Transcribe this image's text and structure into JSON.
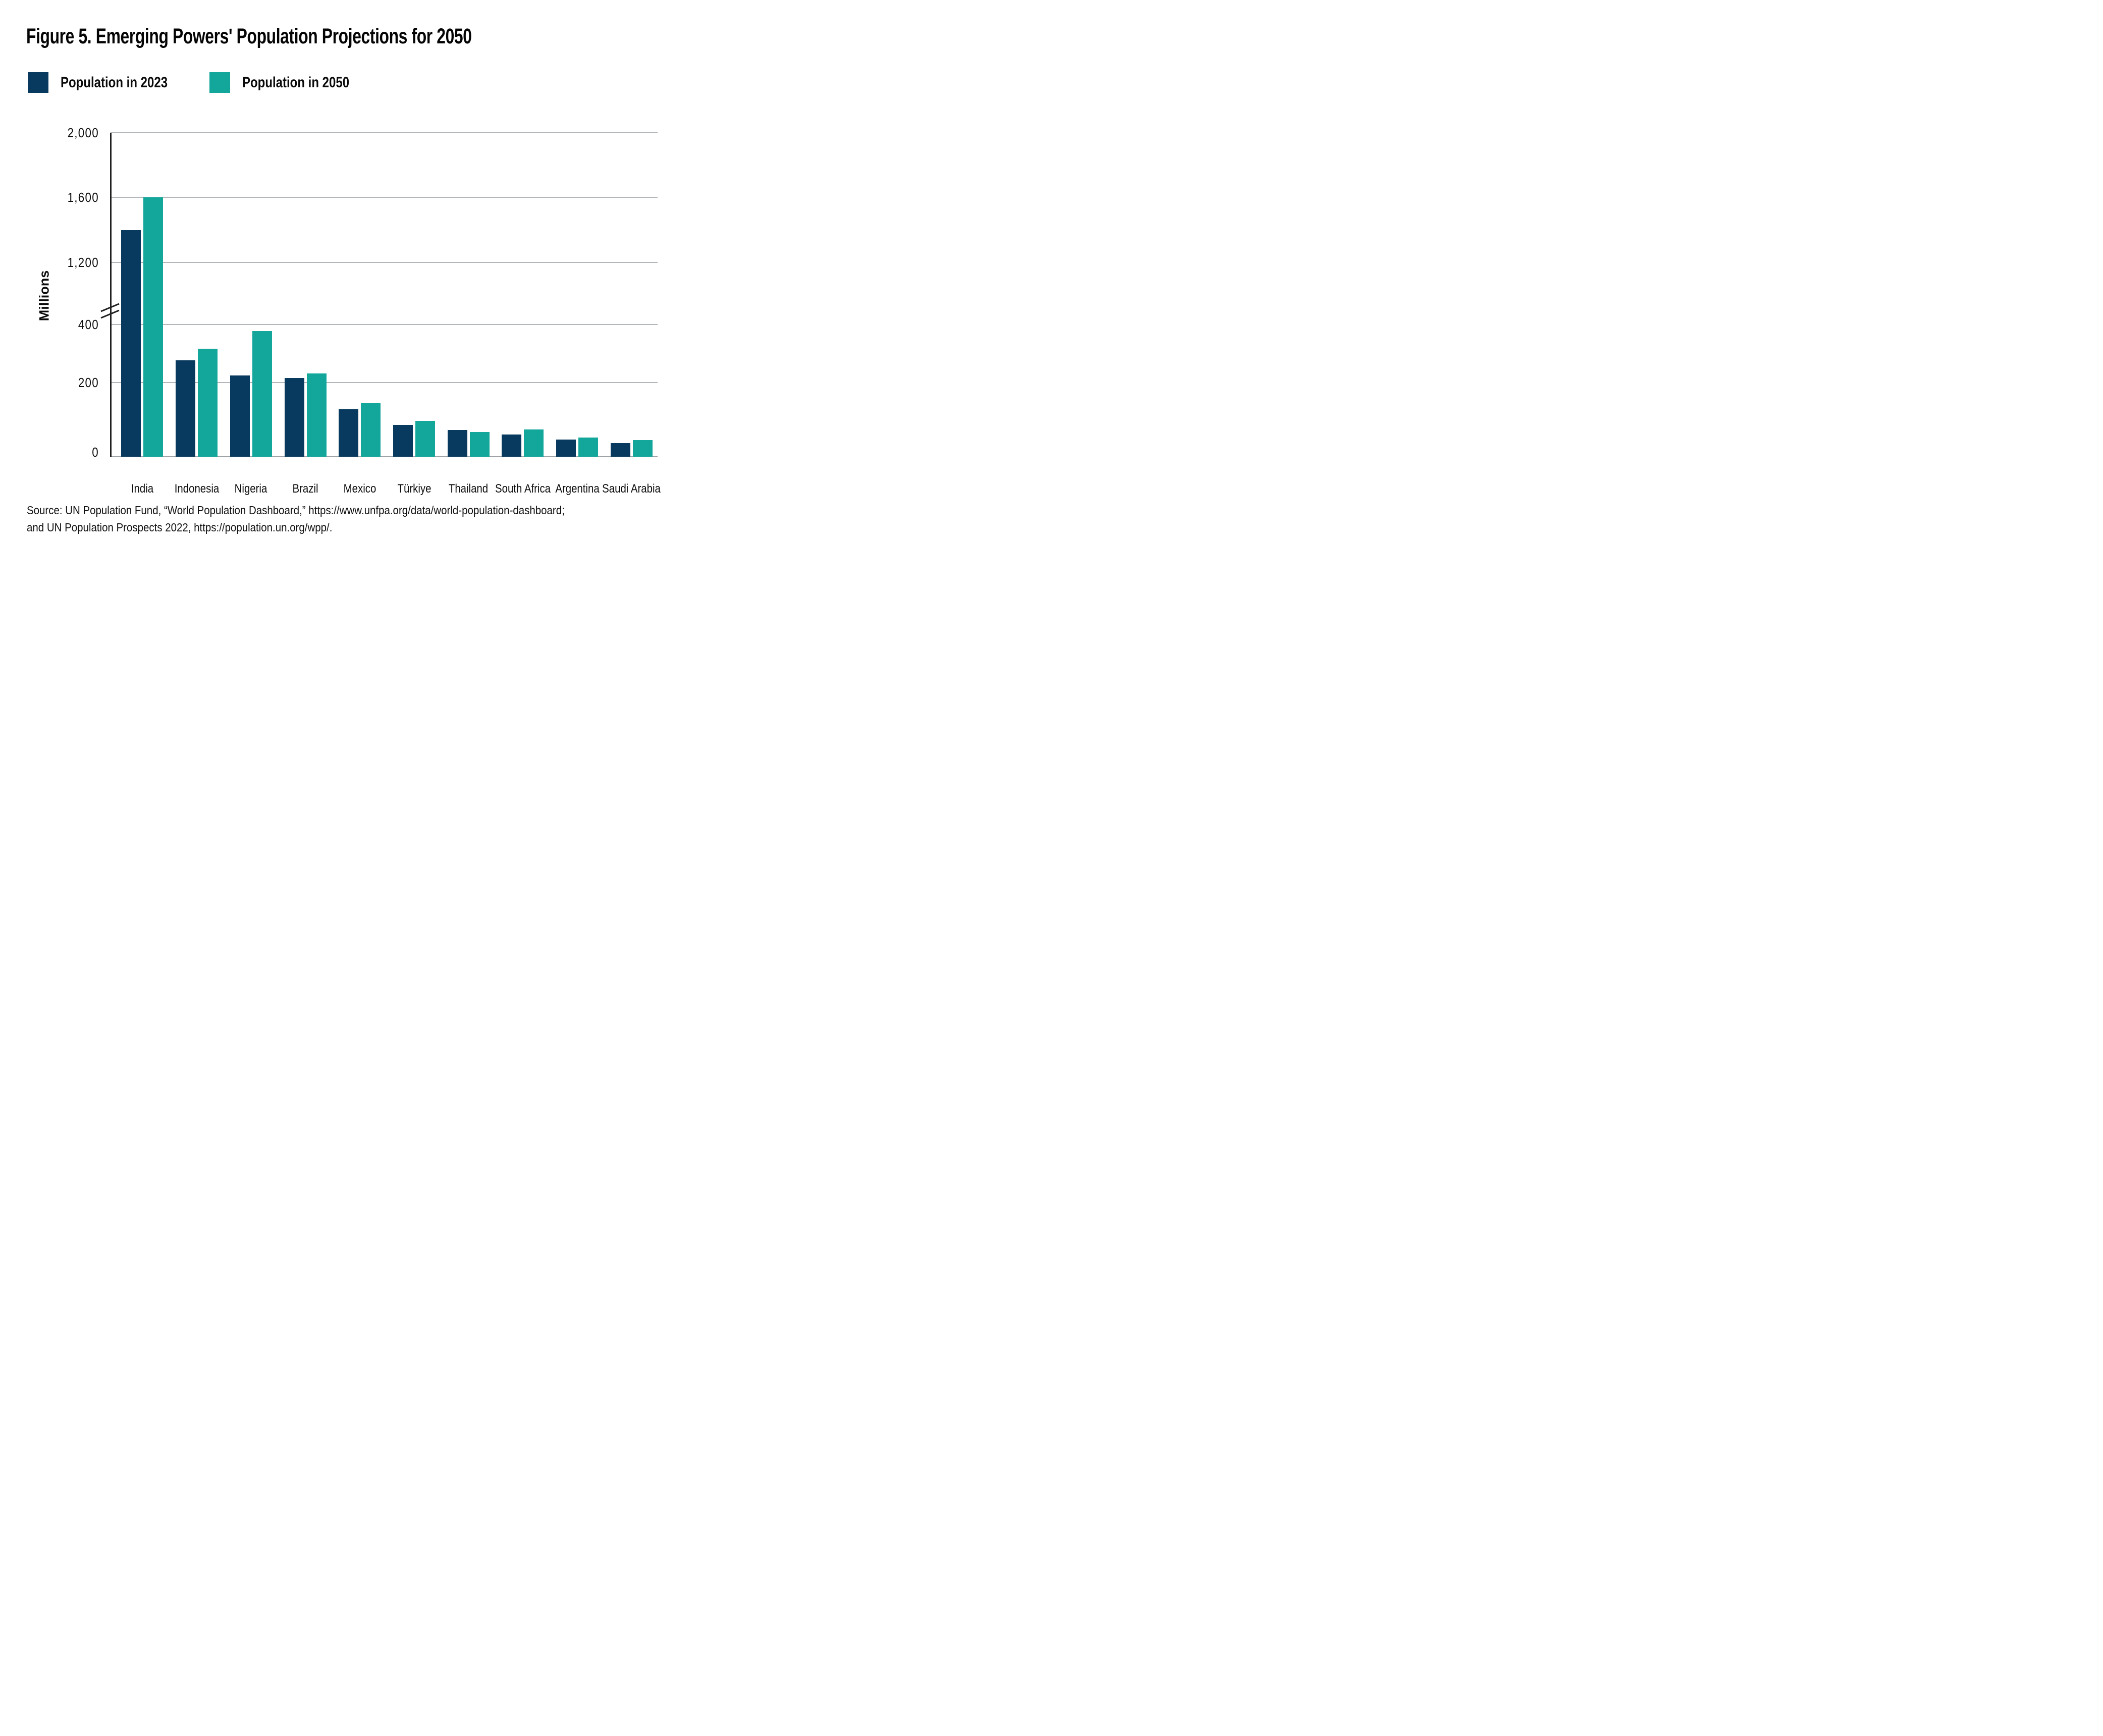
{
  "figure": {
    "title": "Figure 5. Emerging Powers' Population Projections for 2050",
    "source_line1": "Source: UN Population Fund, “World Population Dashboard,” https://www.unfpa.org/data/world-population-dashboard;",
    "source_line2": "and UN Population Prospects 2022,  https://population.un.org/wpp/."
  },
  "legend": {
    "items": [
      {
        "label": "Population in 2023",
        "color": "#073A5E"
      },
      {
        "label": "Population in 2050",
        "color": "#13A79C"
      }
    ]
  },
  "chart_data": {
    "type": "bar",
    "title": "Figure 5. Emerging Powers' Population Projections for 2050",
    "categories": [
      "India",
      "Indonesia",
      "Nigeria",
      "Brazil",
      "Mexico",
      "Türkiye",
      "Thailand",
      "South Africa",
      "Argentina",
      "Saudi Arabia"
    ],
    "series": [
      {
        "name": "Population in 2023",
        "color": "#073A5E",
        "values": [
          1400,
          277,
          224,
          216,
          128,
          86,
          72,
          60,
          46,
          37
        ]
      },
      {
        "name": "Population in 2050",
        "color": "#13A79C",
        "values": [
          1600,
          317,
          377,
          231,
          144,
          96,
          66,
          73,
          52,
          45
        ]
      }
    ],
    "xlabel": "",
    "ylabel": "Millions",
    "units": "millions of people",
    "y_axis": {
      "broken": true,
      "break_between": [
        400,
        1200
      ],
      "tick_values": [
        0,
        200,
        400,
        1200,
        1600,
        2000
      ],
      "tick_labels": [
        "0",
        "200",
        "400",
        "1,200",
        "1,600",
        "2,000"
      ],
      "ylim": [
        0,
        2000
      ]
    },
    "grid": "horizontal",
    "legend_position": "top-left",
    "axis_anchors": [
      [
        0,
        1.0
      ],
      [
        200,
        0.771
      ],
      [
        400,
        0.592
      ],
      [
        1200,
        0.4
      ],
      [
        1600,
        0.2
      ],
      [
        2000,
        0.0
      ]
    ]
  }
}
